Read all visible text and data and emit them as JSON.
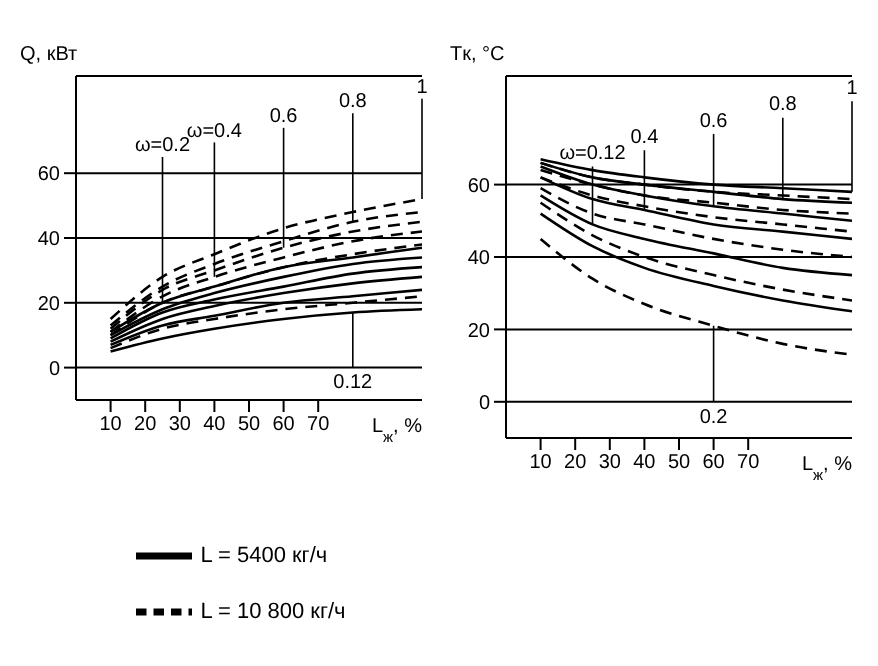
{
  "chart_data": [
    {
      "type": "line",
      "ylabel": "Q, кВт",
      "xlabel": "L$_{ж}$, %",
      "x": [
        10,
        25,
        40,
        60,
        80,
        100
      ],
      "xlim": [
        0,
        100
      ],
      "xticks": [
        10,
        20,
        30,
        40,
        50,
        60,
        70
      ],
      "ylim": [
        -10,
        90
      ],
      "yticks": [
        0,
        20,
        40,
        60
      ],
      "grid": "y",
      "legend": "bottom left",
      "series": [
        {
          "name": "L = 5400 кг/ч",
          "color": "#000000",
          "line_style": "solid",
          "values": [
            5,
            9,
            12,
            15,
            17,
            18
          ]
        },
        {
          "color": "#000000",
          "line_style": "solid",
          "values": [
            7,
            13,
            16,
            20,
            22,
            24
          ]
        },
        {
          "color": "#000000",
          "line_style": "solid",
          "values": [
            8,
            15,
            19,
            23,
            26,
            28
          ]
        },
        {
          "color": "#000000",
          "line_style": "solid",
          "values": [
            9,
            17,
            21,
            25,
            29,
            31
          ]
        },
        {
          "color": "#000000",
          "line_style": "solid",
          "values": [
            10,
            18,
            23,
            28,
            32,
            34
          ]
        },
        {
          "color": "#000000",
          "line_style": "solid",
          "values": [
            11,
            20,
            25,
            31,
            34,
            37
          ]
        },
        {
          "name": "L = 10 800 кг/ч",
          "color": "#000000",
          "line_style": "dashed",
          "values": [
            6,
            12,
            15,
            18,
            20,
            22
          ]
        },
        {
          "color": "#000000",
          "line_style": "dashed",
          "values": [
            10,
            20,
            25,
            31,
            35,
            38
          ]
        },
        {
          "color": "#000000",
          "line_style": "dashed",
          "values": [
            11,
            22,
            28,
            34,
            39,
            42
          ]
        },
        {
          "color": "#000000",
          "line_style": "dashed",
          "values": [
            12,
            24,
            30,
            37,
            42,
            45
          ]
        },
        {
          "color": "#000000",
          "line_style": "dashed",
          "values": [
            13,
            25,
            32,
            39,
            45,
            48
          ]
        },
        {
          "color": "#000000",
          "line_style": "dashed",
          "values": [
            15,
            28,
            35,
            43,
            48,
            52
          ]
        }
      ],
      "annotations": [
        {
          "text": "ω=0.2",
          "x": 25,
          "y": 20
        },
        {
          "text": "ω=0.4",
          "x": 40,
          "y": 28
        },
        {
          "text": "0.6",
          "x": 60,
          "y": 37
        },
        {
          "text": "0.8",
          "x": 80,
          "y": 45
        },
        {
          "text": "1",
          "x": 100,
          "y": 52
        },
        {
          "text": "0.12",
          "x": 80,
          "y": 17
        }
      ]
    },
    {
      "type": "line",
      "ylabel": "Tк, °C",
      "xlabel": "L$_{ж}$, %",
      "x": [
        10,
        25,
        40,
        60,
        80,
        100
      ],
      "xlim": [
        0,
        100
      ],
      "xticks": [
        10,
        20,
        30,
        40,
        50,
        60,
        70
      ],
      "ylim": [
        -10,
        90
      ],
      "yticks": [
        0,
        20,
        40,
        60
      ],
      "grid": "y",
      "series": [
        {
          "color": "#000000",
          "line_style": "solid",
          "values": [
            67,
            64,
            62,
            60,
            59,
            58
          ]
        },
        {
          "color": "#000000",
          "line_style": "solid",
          "values": [
            66,
            62,
            60,
            58,
            56,
            55
          ]
        },
        {
          "color": "#000000",
          "line_style": "solid",
          "values": [
            65,
            60,
            57,
            54,
            52,
            50
          ]
        },
        {
          "color": "#000000",
          "line_style": "solid",
          "values": [
            62,
            56,
            53,
            49,
            47,
            45
          ]
        },
        {
          "color": "#000000",
          "line_style": "solid",
          "values": [
            57,
            49,
            45,
            41,
            37,
            35
          ]
        },
        {
          "color": "#000000",
          "line_style": "solid",
          "values": [
            52,
            43,
            37,
            32,
            28,
            25
          ]
        },
        {
          "color": "#000000",
          "line_style": "dashed",
          "values": [
            66,
            62,
            60,
            58,
            57,
            56
          ]
        },
        {
          "color": "#000000",
          "line_style": "dashed",
          "values": [
            64,
            60,
            57,
            55,
            53,
            52
          ]
        },
        {
          "color": "#000000",
          "line_style": "dashed",
          "values": [
            62,
            57,
            54,
            51,
            49,
            47
          ]
        },
        {
          "color": "#000000",
          "line_style": "dashed",
          "values": [
            59,
            52,
            49,
            45,
            42,
            40
          ]
        },
        {
          "color": "#000000",
          "line_style": "dashed",
          "values": [
            55,
            46,
            40,
            35,
            31,
            28
          ]
        },
        {
          "color": "#000000",
          "line_style": "dashed",
          "values": [
            45,
            34,
            27,
            21,
            16,
            13
          ]
        }
      ],
      "annotations": [
        {
          "text": "ω=0.12",
          "x": 25,
          "y": 49
        },
        {
          "text": "0.4",
          "x": 40,
          "y": 53
        },
        {
          "text": "0.6",
          "x": 60,
          "y": 54
        },
        {
          "text": "0.8",
          "x": 80,
          "y": 56
        },
        {
          "text": "1",
          "x": 100,
          "y": 58
        },
        {
          "text": "0.2",
          "x": 60,
          "y": 21
        }
      ]
    }
  ]
}
